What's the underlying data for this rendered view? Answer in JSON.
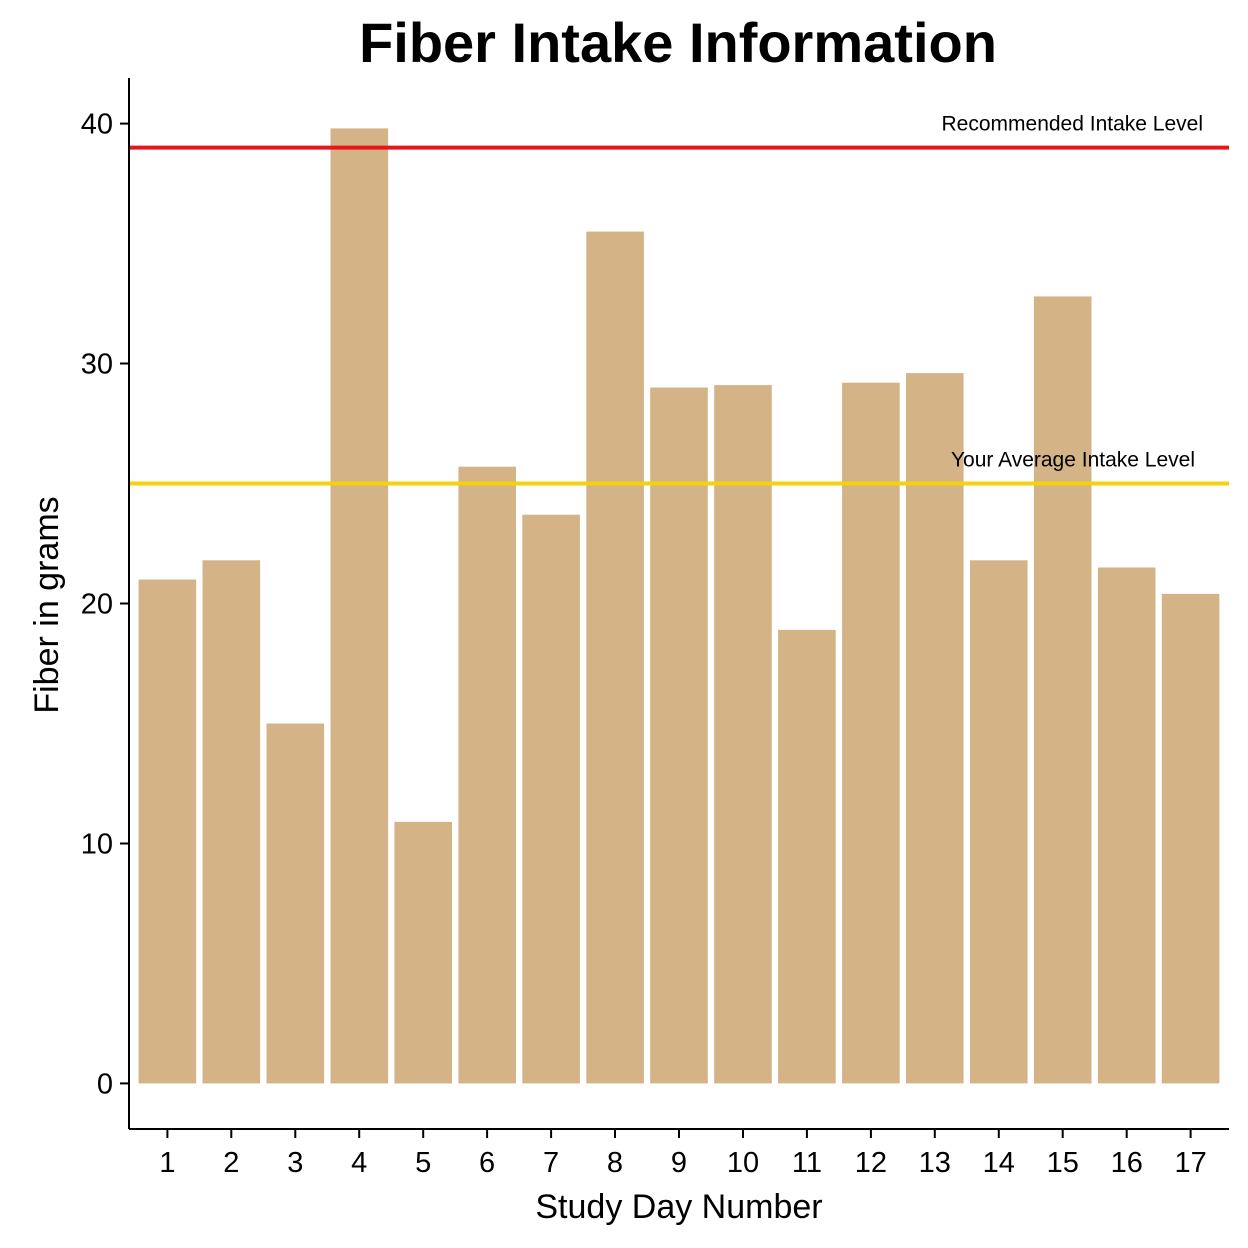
{
  "chart_data": {
    "type": "bar",
    "title": "Fiber Intake Information",
    "xlabel": "Study Day Number",
    "ylabel": "Fiber in grams",
    "categories": [
      "1",
      "2",
      "3",
      "4",
      "5",
      "6",
      "7",
      "8",
      "9",
      "10",
      "11",
      "12",
      "13",
      "14",
      "15",
      "16",
      "17"
    ],
    "values": [
      21.0,
      21.8,
      15.0,
      39.8,
      10.9,
      25.7,
      23.7,
      35.5,
      29.0,
      29.1,
      18.9,
      29.2,
      29.6,
      21.8,
      32.8,
      21.5,
      20.4
    ],
    "ylim": [
      -1.9,
      41.9
    ],
    "yticks": [
      0,
      10,
      20,
      30,
      40
    ],
    "reference_lines": [
      {
        "label": "Recommended Intake Level",
        "value": 39,
        "color": "#e8161b"
      },
      {
        "label": "Your Average Intake Level",
        "value": 25,
        "color": "#f5d20e"
      }
    ],
    "bar_color": "#d4b387",
    "grid": false,
    "legend": "none"
  }
}
